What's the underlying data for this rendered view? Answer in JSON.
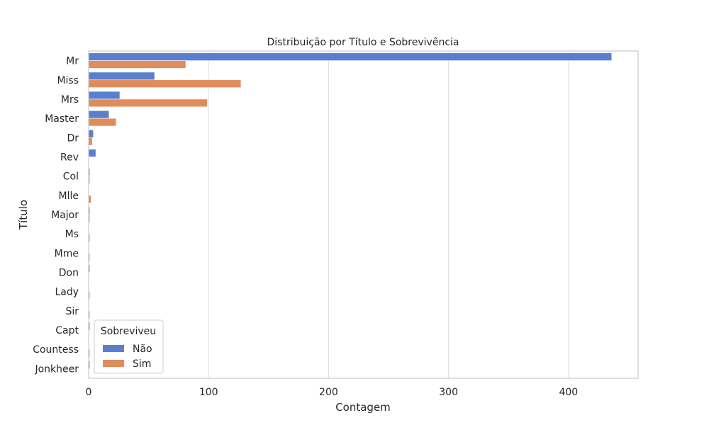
{
  "chart_data": {
    "type": "bar",
    "orientation": "horizontal",
    "title": "Distribuição por Título e Sobrevivência",
    "xlabel": "Contagem",
    "ylabel": "Título",
    "categories": [
      "Mr",
      "Miss",
      "Mrs",
      "Master",
      "Dr",
      "Rev",
      "Col",
      "Mlle",
      "Major",
      "Ms",
      "Mme",
      "Don",
      "Lady",
      "Sir",
      "Capt",
      "Countess",
      "Jonkheer"
    ],
    "series": [
      {
        "name": "Não",
        "color": "#5a7fce",
        "values": [
          436,
          55,
          26,
          17,
          4,
          6,
          1,
          0,
          1,
          0,
          0,
          1,
          0,
          0,
          1,
          0,
          1
        ]
      },
      {
        "name": "Sim",
        "color": "#e08c5c",
        "values": [
          81,
          127,
          99,
          23,
          3,
          0,
          1,
          2,
          1,
          1,
          1,
          0,
          1,
          1,
          0,
          1,
          0
        ]
      }
    ],
    "xlim": [
      0,
      458
    ],
    "xticks": [
      0,
      100,
      200,
      300,
      400
    ],
    "grid": true,
    "legend": {
      "title": "Sobreviveu",
      "placement": "lower-left"
    }
  }
}
